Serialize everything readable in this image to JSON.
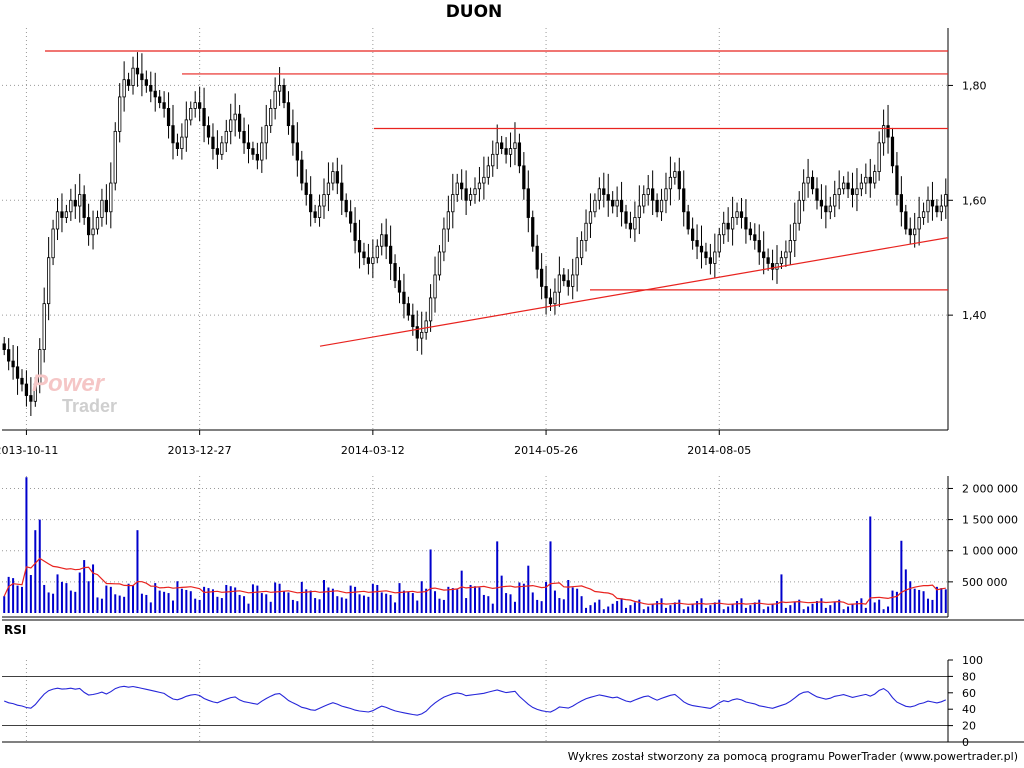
{
  "title": "DUON",
  "footer": "Wykres został stworzony za pomocą programu PowerTrader (www.powertrader.pl)",
  "logo": {
    "line1": "Power",
    "line2": "Trader"
  },
  "rsi_label": "RSI",
  "colors": {
    "candle": "#000000",
    "trendline": "#e8231f",
    "volume": "#0000cc",
    "volume_ma": "#e8231f",
    "rsi": "#2626d9",
    "grid": "#9a9a9a"
  },
  "chart_data": [
    {
      "type": "candlestick",
      "name": "price",
      "x_ticks": [
        "2013-10-11",
        "2013-12-27",
        "2014-03-12",
        "2014-05-26",
        "2014-08-05"
      ],
      "y_ticks": [
        "1,40",
        "1,60",
        "1,80"
      ],
      "ylim": [
        1.2,
        1.9
      ],
      "grid": true,
      "closes": [
        1.34,
        1.32,
        1.31,
        1.29,
        1.28,
        1.26,
        1.25,
        1.28,
        1.34,
        1.42,
        1.5,
        1.55,
        1.58,
        1.57,
        1.58,
        1.6,
        1.59,
        1.61,
        1.57,
        1.54,
        1.55,
        1.57,
        1.6,
        1.58,
        1.63,
        1.72,
        1.78,
        1.81,
        1.8,
        1.83,
        1.82,
        1.81,
        1.8,
        1.79,
        1.78,
        1.77,
        1.76,
        1.73,
        1.7,
        1.69,
        1.71,
        1.74,
        1.76,
        1.77,
        1.76,
        1.73,
        1.71,
        1.69,
        1.68,
        1.7,
        1.72,
        1.74,
        1.75,
        1.72,
        1.7,
        1.69,
        1.68,
        1.67,
        1.7,
        1.73,
        1.76,
        1.79,
        1.8,
        1.77,
        1.73,
        1.7,
        1.67,
        1.63,
        1.61,
        1.58,
        1.57,
        1.59,
        1.61,
        1.63,
        1.65,
        1.63,
        1.6,
        1.58,
        1.56,
        1.53,
        1.51,
        1.5,
        1.49,
        1.5,
        1.52,
        1.54,
        1.52,
        1.49,
        1.46,
        1.44,
        1.42,
        1.4,
        1.38,
        1.36,
        1.37,
        1.39,
        1.43,
        1.47,
        1.51,
        1.55,
        1.58,
        1.61,
        1.63,
        1.62,
        1.6,
        1.61,
        1.62,
        1.63,
        1.64,
        1.66,
        1.68,
        1.7,
        1.69,
        1.68,
        1.69,
        1.7,
        1.66,
        1.62,
        1.57,
        1.52,
        1.48,
        1.45,
        1.43,
        1.42,
        1.44,
        1.47,
        1.46,
        1.45,
        1.47,
        1.5,
        1.53,
        1.56,
        1.58,
        1.6,
        1.62,
        1.61,
        1.6,
        1.59,
        1.6,
        1.58,
        1.56,
        1.55,
        1.57,
        1.59,
        1.61,
        1.62,
        1.6,
        1.58,
        1.6,
        1.62,
        1.64,
        1.65,
        1.62,
        1.58,
        1.55,
        1.53,
        1.52,
        1.51,
        1.5,
        1.49,
        1.51,
        1.54,
        1.56,
        1.55,
        1.57,
        1.58,
        1.57,
        1.55,
        1.54,
        1.53,
        1.51,
        1.5,
        1.49,
        1.48,
        1.49,
        1.5,
        1.51,
        1.53,
        1.56,
        1.6,
        1.63,
        1.64,
        1.62,
        1.6,
        1.59,
        1.58,
        1.59,
        1.61,
        1.62,
        1.63,
        1.62,
        1.61,
        1.62,
        1.63,
        1.64,
        1.63,
        1.65,
        1.7,
        1.73,
        1.71,
        1.66,
        1.61,
        1.58,
        1.55,
        1.54,
        1.55,
        1.57,
        1.58,
        1.6,
        1.59,
        1.58,
        1.59,
        1.61
      ],
      "trendlines": [
        {
          "kind": "resistance",
          "level": 1.86
        },
        {
          "kind": "resistance",
          "level": 1.82
        },
        {
          "kind": "resistance",
          "level": 1.725
        },
        {
          "kind": "support",
          "level": 1.444
        },
        {
          "kind": "rising_support",
          "from": 1.346,
          "to": 1.535
        }
      ]
    },
    {
      "type": "bar",
      "name": "volume",
      "y_ticks": [
        "500 000",
        "1 000 000",
        "1 500 000",
        "2 000 000"
      ],
      "ylim": [
        0,
        2200000
      ],
      "moving_average": true
    },
    {
      "type": "line",
      "name": "RSI",
      "y_ticks": [
        "0",
        "20",
        "40",
        "60",
        "80",
        "100"
      ],
      "ylim": [
        0,
        100
      ],
      "levels": [
        20,
        80
      ]
    }
  ]
}
